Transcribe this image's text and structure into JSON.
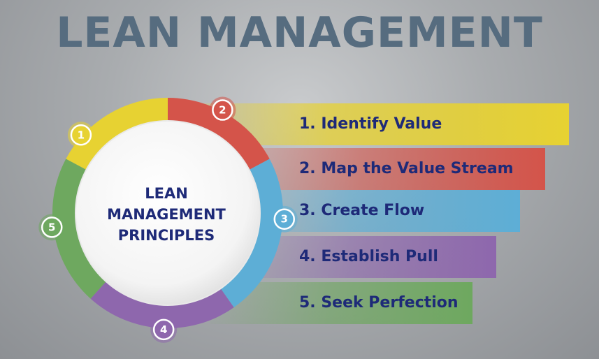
{
  "title": "LEAN MANAGEMENT",
  "center": {
    "line1": "LEAN",
    "line2": "MANAGEMENT",
    "line3": "PRINCIPLES"
  },
  "principles": [
    {
      "number": "1",
      "label": "1. Identify Value",
      "color": "#e7d232"
    },
    {
      "number": "2",
      "label": "2. Map the Value Stream",
      "color": "#d4544a"
    },
    {
      "number": "3",
      "label": "3. Create Flow",
      "color": "#5daed6"
    },
    {
      "number": "4",
      "label": "4. Establish Pull",
      "color": "#8e67ad"
    },
    {
      "number": "5",
      "label": "5. Seek Perfection",
      "color": "#6ea85f"
    }
  ]
}
